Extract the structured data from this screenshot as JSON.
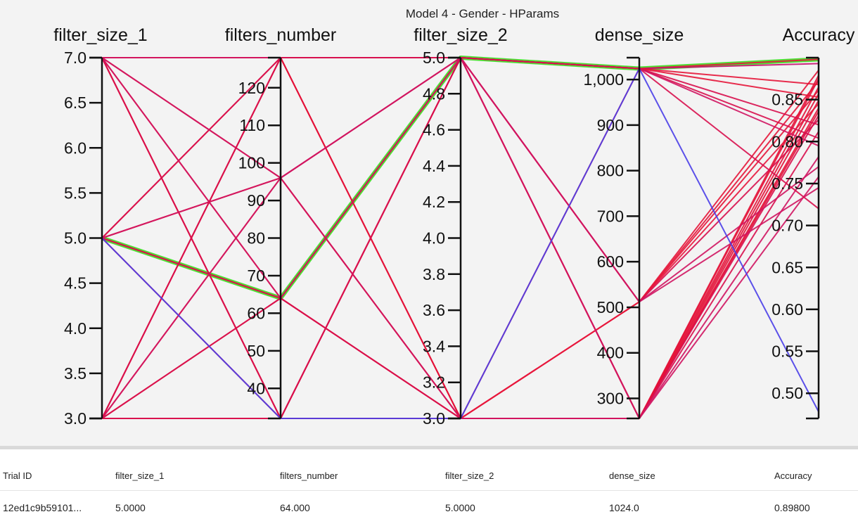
{
  "chart_data": {
    "type": "parallel_coordinates",
    "title": "Model 4 - Gender - HParams",
    "axes": [
      {
        "name": "filter_size_1",
        "range": [
          3.0,
          7.0
        ],
        "ticks": [
          "7.0",
          "6.5",
          "6.0",
          "5.5",
          "5.0",
          "4.5",
          "4.0",
          "3.5",
          "3.0"
        ],
        "tick_values": [
          7.0,
          6.5,
          6.0,
          5.5,
          5.0,
          4.5,
          4.0,
          3.5,
          3.0
        ]
      },
      {
        "name": "filters_number",
        "range": [
          32,
          128
        ],
        "ticks": [
          "120",
          "110",
          "100",
          "90",
          "80",
          "70",
          "60",
          "50",
          "40"
        ],
        "tick_values": [
          120,
          110,
          100,
          90,
          80,
          70,
          60,
          50,
          40
        ]
      },
      {
        "name": "filter_size_2",
        "range": [
          3.0,
          5.0
        ],
        "ticks": [
          "5.0",
          "4.8",
          "4.6",
          "4.4",
          "4.2",
          "4.0",
          "3.8",
          "3.6",
          "3.4",
          "3.2",
          "3.0"
        ],
        "tick_values": [
          5.0,
          4.8,
          4.6,
          4.4,
          4.2,
          4.0,
          3.8,
          3.6,
          3.4,
          3.2,
          3.0
        ]
      },
      {
        "name": "dense_size",
        "range": [
          256,
          1048
        ],
        "ticks": [
          "1,000",
          "900",
          "800",
          "700",
          "600",
          "500",
          "400",
          "300"
        ],
        "tick_values": [
          1000,
          900,
          800,
          700,
          600,
          500,
          400,
          300
        ]
      },
      {
        "name": "Accuracy",
        "range": [
          0.47,
          0.9
        ],
        "ticks": [
          "0.85",
          "0.80",
          "0.75",
          "0.70",
          "0.65",
          "0.60",
          "0.55",
          "0.50"
        ],
        "tick_values": [
          0.85,
          0.8,
          0.75,
          0.7,
          0.65,
          0.6,
          0.55,
          0.5
        ]
      }
    ],
    "trials": [
      {
        "values": [
          5,
          64,
          5,
          1024,
          0.898
        ],
        "highlight": true
      },
      {
        "values": [
          5,
          64,
          5,
          1024,
          0.898
        ],
        "color": "#e6163a"
      },
      {
        "values": [
          7,
          128,
          5,
          1024,
          0.893
        ],
        "color": "#c8106e"
      },
      {
        "values": [
          7,
          96,
          3,
          512,
          0.885
        ],
        "color": "#e6163a"
      },
      {
        "values": [
          7,
          32,
          5,
          256,
          0.879
        ],
        "color": "#e41338"
      },
      {
        "values": [
          7,
          32,
          3,
          256,
          0.875
        ],
        "color": "#e31238"
      },
      {
        "values": [
          5,
          128,
          3,
          512,
          0.872
        ],
        "color": "#e6163a"
      },
      {
        "values": [
          5,
          96,
          5,
          1024,
          0.868
        ],
        "color": "#e6163a"
      },
      {
        "values": [
          5,
          32,
          5,
          256,
          0.865
        ],
        "color": "#e41338"
      },
      {
        "values": [
          3,
          128,
          5,
          512,
          0.861
        ],
        "color": "#e6163a"
      },
      {
        "values": [
          3,
          96,
          3,
          256,
          0.857
        ],
        "color": "#e31238"
      },
      {
        "values": [
          3,
          64,
          3,
          1024,
          0.853
        ],
        "color": "#e6163a"
      },
      {
        "values": [
          3,
          32,
          3,
          256,
          0.849
        ],
        "color": "#e31238"
      },
      {
        "values": [
          7,
          128,
          3,
          512,
          0.845
        ],
        "color": "#e8173d"
      },
      {
        "values": [
          7,
          64,
          3,
          256,
          0.84
        ],
        "color": "#e31238"
      },
      {
        "values": [
          3,
          128,
          3,
          256,
          0.836
        ],
        "color": "#e31238"
      },
      {
        "values": [
          5,
          64,
          3,
          256,
          0.831
        ],
        "color": "#d8104e"
      },
      {
        "values": [
          3,
          32,
          5,
          512,
          0.826
        ],
        "color": "#d8104e"
      },
      {
        "values": [
          7,
          32,
          5,
          1024,
          0.82
        ],
        "color": "#d8104e"
      },
      {
        "values": [
          5,
          128,
          5,
          256,
          0.812
        ],
        "color": "#d8104e"
      },
      {
        "values": [
          3,
          64,
          5,
          1024,
          0.804
        ],
        "color": "#d8104e"
      },
      {
        "values": [
          7,
          96,
          5,
          1024,
          0.795
        ],
        "color": "#d01562"
      },
      {
        "values": [
          5,
          96,
          3,
          256,
          0.782
        ],
        "color": "#d01562"
      },
      {
        "values": [
          3,
          96,
          5,
          512,
          0.77
        ],
        "color": "#d01562"
      },
      {
        "values": [
          7,
          64,
          5,
          256,
          0.758
        ],
        "color": "#d01562"
      },
      {
        "values": [
          7,
          128,
          5,
          512,
          0.745
        ],
        "color": "#d01562"
      },
      {
        "values": [
          3,
          128,
          5,
          1024,
          0.72
        ],
        "color": "#d8104e"
      },
      {
        "values": [
          5,
          32,
          3,
          1024,
          0.478
        ],
        "color": "#4a3ee8"
      }
    ],
    "grid": false,
    "legend": "none"
  },
  "table": {
    "headers": [
      "Trial ID",
      "filter_size_1",
      "filters_number",
      "filter_size_2",
      "dense_size",
      "Accuracy"
    ],
    "row": [
      "12ed1c9b59101...",
      "5.0000",
      "64.000",
      "5.0000",
      "1024.0",
      "0.89800"
    ]
  },
  "colors": {
    "highlight": "#44dd2a",
    "line_default": "#e6163a",
    "low_accuracy": "#4a3ee8"
  }
}
